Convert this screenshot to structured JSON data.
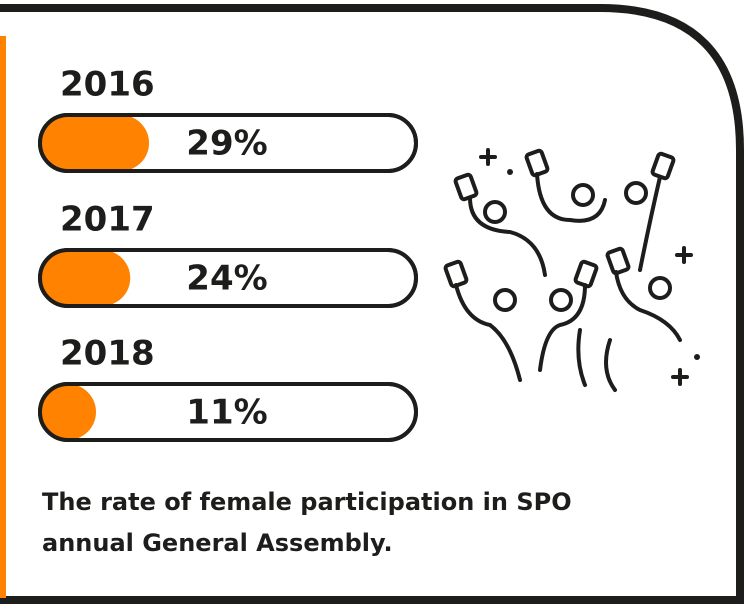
{
  "chart_data": {
    "type": "bar",
    "orientation": "horizontal",
    "categories": [
      "2016",
      "2017",
      "2018"
    ],
    "values": [
      29,
      24,
      11
    ],
    "value_labels": [
      "29%",
      "24%",
      "11%"
    ],
    "color": "#ff8200",
    "xlim": [
      0,
      100
    ],
    "caption": [
      "The rate of female participation in SPO",
      "annual General Assembly."
    ]
  }
}
